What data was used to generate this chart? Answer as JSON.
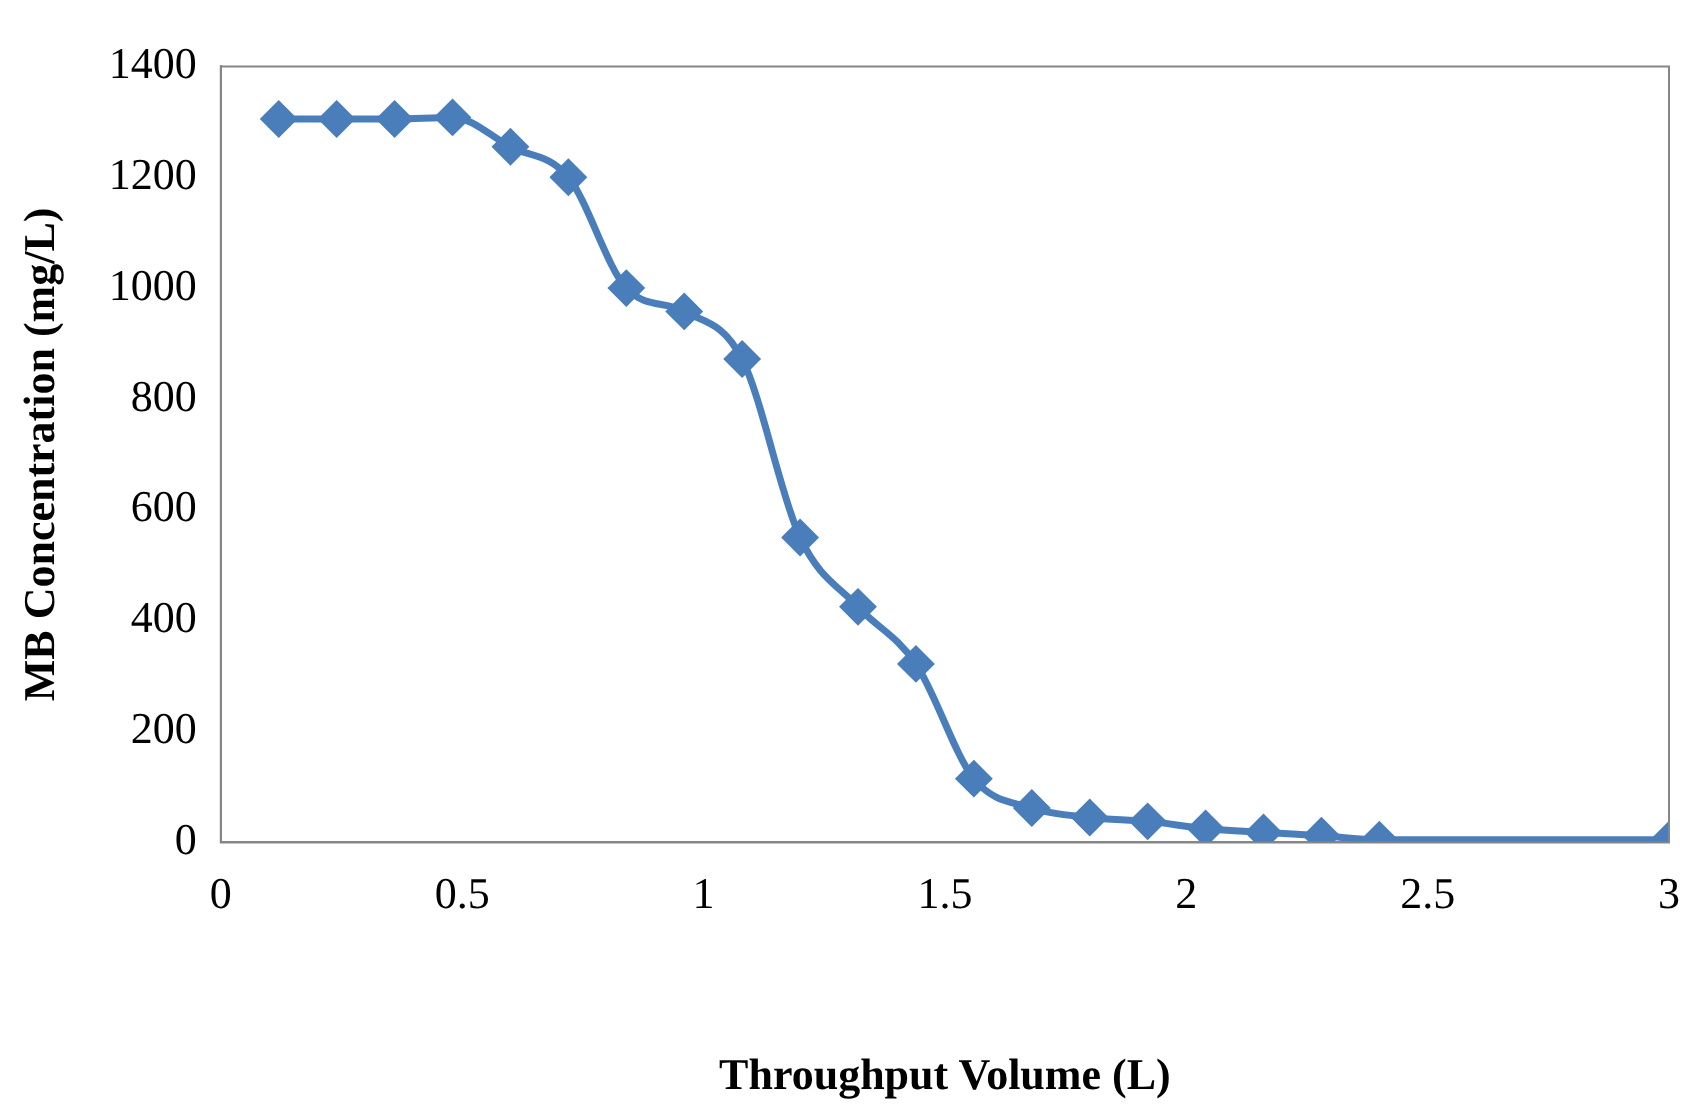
{
  "chart_data": {
    "type": "line",
    "xlabel": "Throughput Volume (L)",
    "ylabel": "MB Concentration (mg/L)",
    "x": [
      0.12,
      0.24,
      0.36,
      0.48,
      0.6,
      0.72,
      0.84,
      0.96,
      1.08,
      1.2,
      1.32,
      1.44,
      1.56,
      1.68,
      1.8,
      1.92,
      2.04,
      2.16,
      2.28,
      2.4,
      3.0
    ],
    "series": [
      {
        "color": "#4a7ebb",
        "values": [
          1305,
          1305,
          1305,
          1308,
          1255,
          1200,
          1000,
          958,
          872,
          550,
          425,
          322,
          115,
          62,
          45,
          38,
          25,
          18,
          12,
          5,
          5
        ]
      }
    ],
    "xlim": [
      0,
      3
    ],
    "xticks": [
      0,
      0.5,
      1,
      1.5,
      2,
      2.5,
      3
    ],
    "ylim": [
      0,
      1400
    ],
    "yticks": [
      0,
      200,
      400,
      600,
      800,
      1000,
      1200,
      1400
    ],
    "grid": false,
    "legend": false,
    "marker": "diamond",
    "line_style": "solid"
  }
}
